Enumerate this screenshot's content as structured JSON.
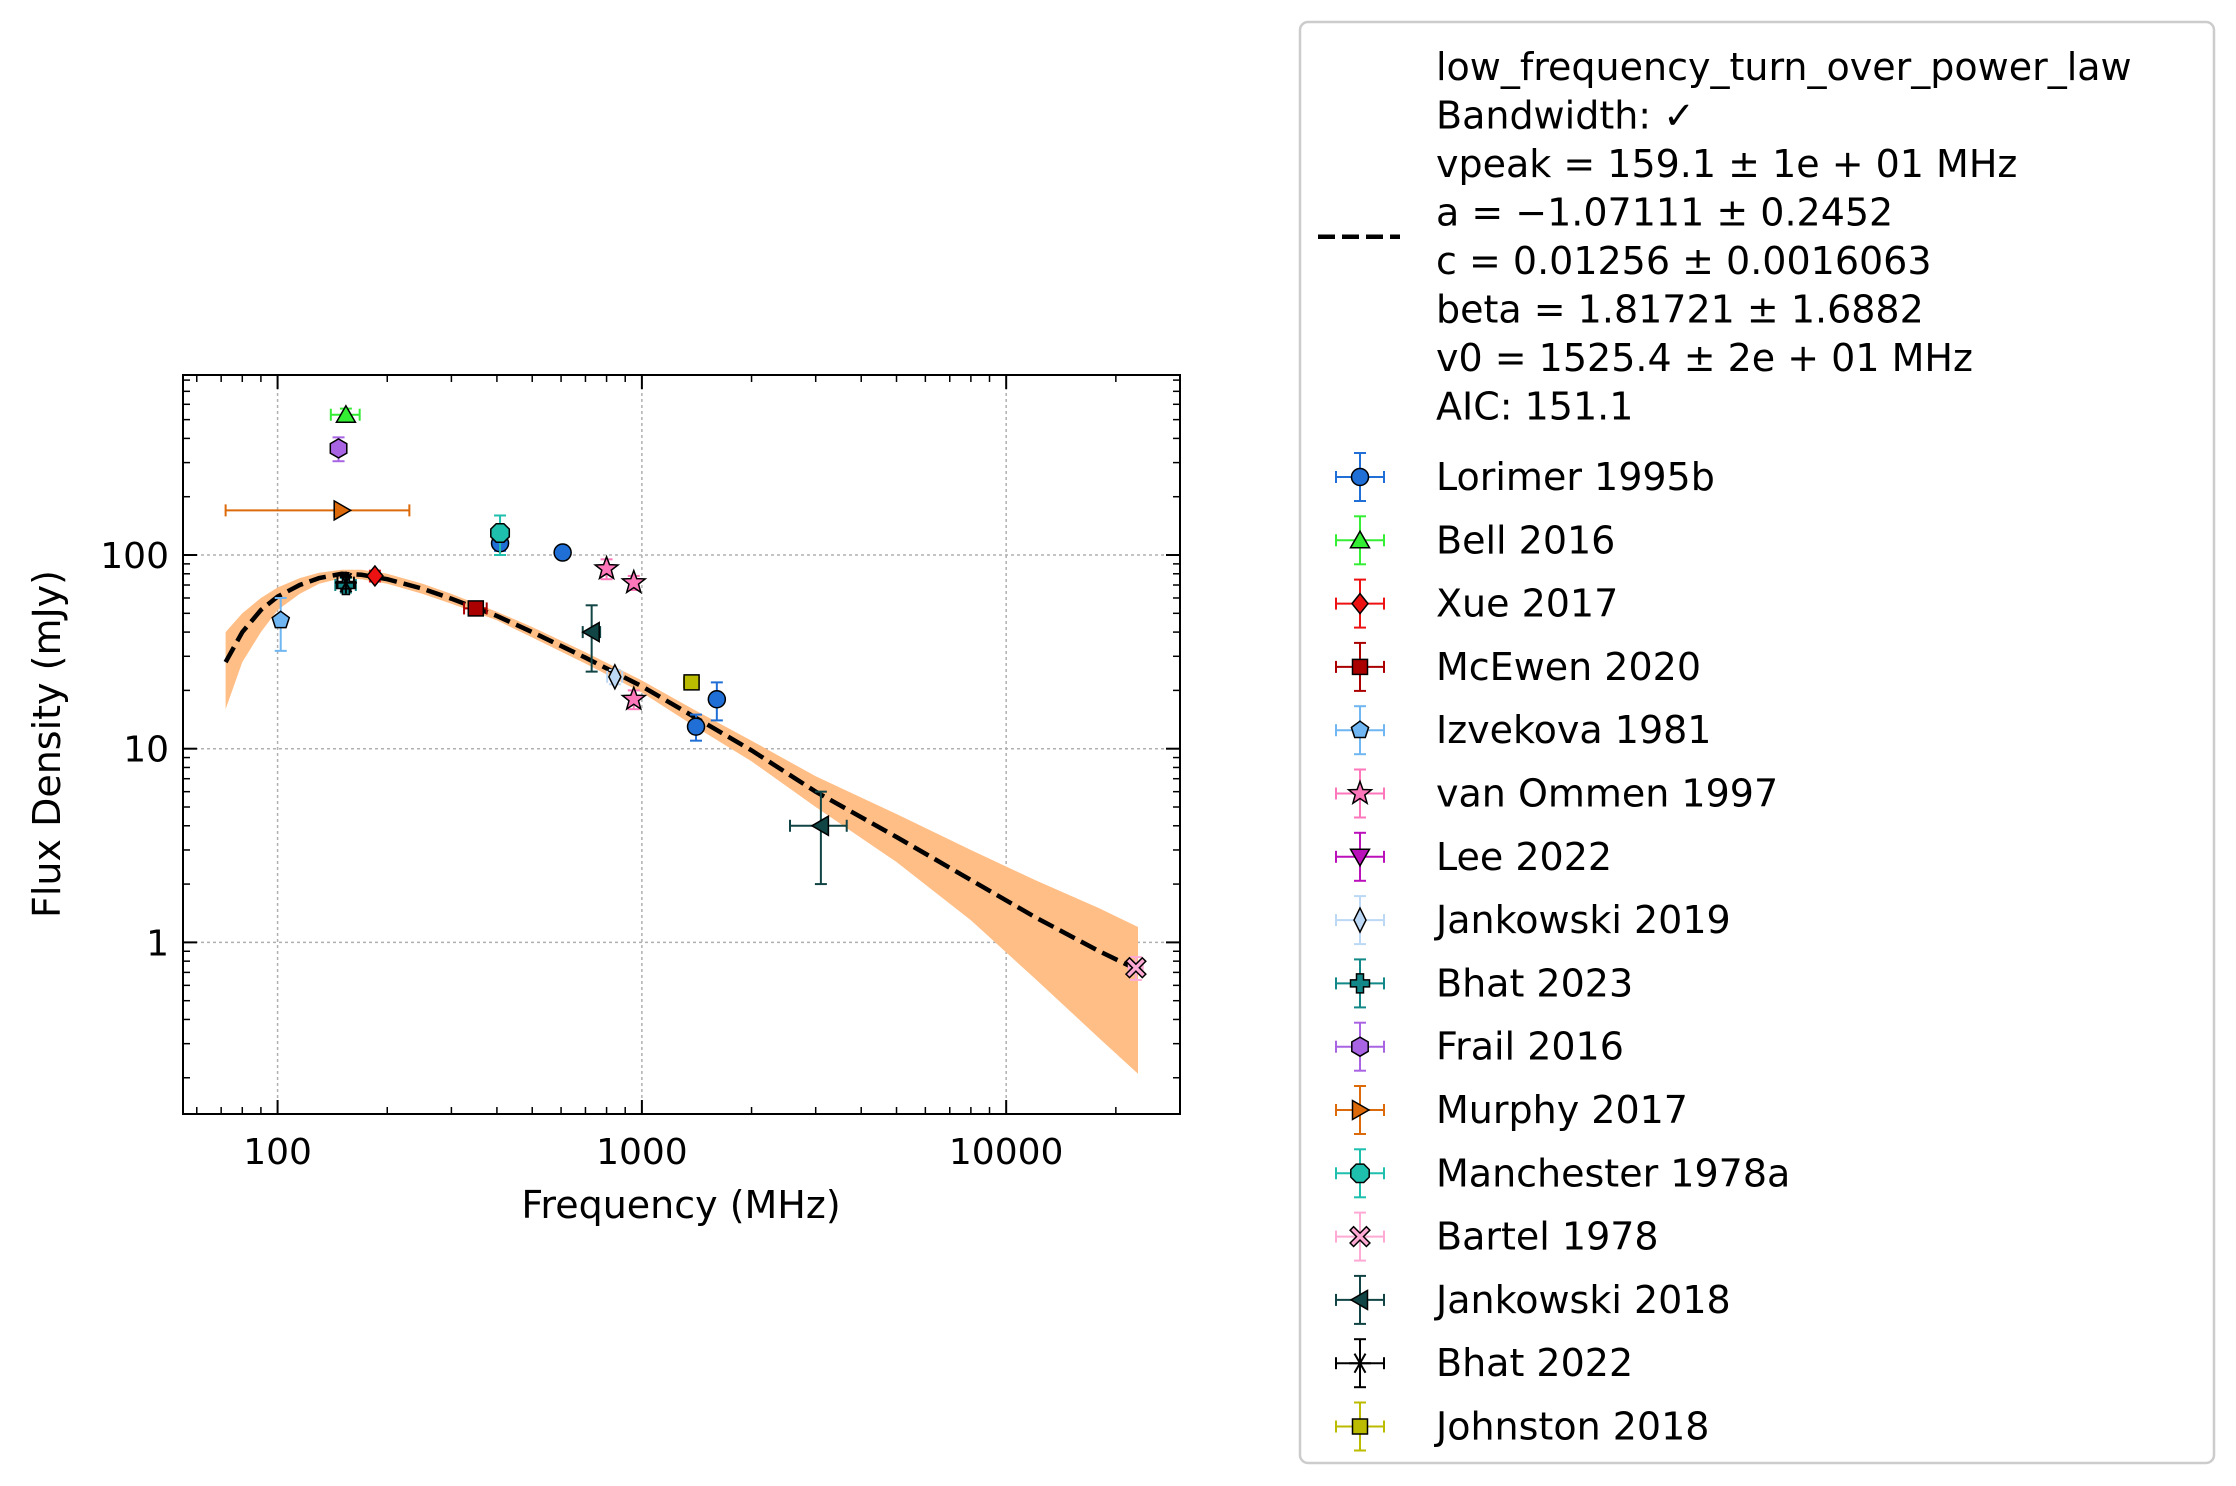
{
  "chart_data": {
    "type": "scatter",
    "xlabel": "Frequency (MHz)",
    "ylabel": "Flux Density (mJy)",
    "xscale": "log",
    "yscale": "log",
    "xlim": [
      55,
      30000
    ],
    "ylim": [
      0.13,
      850
    ],
    "grid": true,
    "legend_placement": "outside-right",
    "x_ticks": [
      {
        "value": 100,
        "label": "100"
      },
      {
        "value": 1000,
        "label": "1000"
      },
      {
        "value": 10000,
        "label": "10000"
      }
    ],
    "y_ticks": [
      {
        "value": 1,
        "label": "1"
      },
      {
        "value": 10,
        "label": "10"
      },
      {
        "value": 100,
        "label": "100"
      }
    ],
    "fit": {
      "name": "low_frequency_turn_over_power_law",
      "legend_lines": [
        "low_frequency_turn_over_power_law",
        "Bandwidth: ✓",
        "vpeak = 159.1 ± 1e + 01 MHz",
        "a = −1.07111 ± 0.2452",
        "c = 0.01256 ± 0.0016063",
        "beta = 1.81721 ± 1.6882",
        "v0 = 1525.4 ± 2e + 01 MHz",
        "AIC: 151.1"
      ],
      "color": "#000000",
      "band_color": "#ffbe86",
      "x": [
        72,
        80,
        90,
        100,
        115,
        130,
        150,
        170,
        200,
        250,
        300,
        400,
        500,
        700,
        1000,
        1400,
        2000,
        3000,
        5000,
        8000,
        12000,
        18000,
        23000
      ],
      "y": [
        28,
        40,
        52,
        61,
        70,
        76,
        80,
        79,
        75,
        67,
        59.5,
        48.5,
        40,
        29.5,
        21,
        14.5,
        9.8,
        6.0,
        3.5,
        2.1,
        1.35,
        0.9,
        0.72
      ],
      "band_upper": [
        40,
        50,
        60,
        68,
        76,
        81,
        84,
        84,
        80,
        71,
        63,
        51,
        42.5,
        31.5,
        22.5,
        15.8,
        11.0,
        7.2,
        4.6,
        3.0,
        2.1,
        1.5,
        1.2
      ],
      "band_lower": [
        16,
        28,
        40,
        52,
        63,
        71,
        76,
        75,
        71,
        63,
        56,
        46,
        37.5,
        27.5,
        19.5,
        13.0,
        8.6,
        5.0,
        2.6,
        1.3,
        0.65,
        0.32,
        0.21
      ]
    },
    "series": [
      {
        "name": "Lorimer 1995b",
        "color": "#1f6fd6",
        "marker": "circle",
        "points": [
          {
            "x": 408,
            "y": 115,
            "yerr": [
              10,
              10
            ]
          },
          {
            "x": 606,
            "y": 103,
            "yerr": [
              6,
              6
            ]
          },
          {
            "x": 1408,
            "y": 13,
            "yerr": [
              2,
              2
            ]
          },
          {
            "x": 1606,
            "y": 18,
            "yerr": [
              4,
              4
            ]
          }
        ]
      },
      {
        "name": "Bell 2016",
        "color": "#33ee33",
        "marker": "triangle-up",
        "points": [
          {
            "x": 154,
            "y": 530,
            "xerr": [
              14,
              14
            ],
            "yerr": [
              40,
              40
            ]
          }
        ]
      },
      {
        "name": "Xue 2017",
        "color": "#ee1111",
        "marker": "diamond",
        "points": [
          {
            "x": 185,
            "y": 78,
            "xerr": [
              5,
              5
            ],
            "yerr": [
              5,
              5
            ]
          }
        ]
      },
      {
        "name": "McEwen 2020",
        "color": "#aa0000",
        "marker": "square",
        "points": [
          {
            "x": 350,
            "y": 53,
            "xerr": [
              25,
              25
            ],
            "yerr": [
              4,
              4
            ]
          }
        ]
      },
      {
        "name": "Izvekova 1981",
        "color": "#6fb6f2",
        "marker": "pentagon",
        "points": [
          {
            "x": 102,
            "y": 46,
            "yerr": [
              14,
              14
            ]
          }
        ]
      },
      {
        "name": "van Ommen 1997",
        "color": "#ff77bb",
        "marker": "star",
        "points": [
          {
            "x": 800,
            "y": 85,
            "yerr": [
              10,
              10
            ]
          },
          {
            "x": 950,
            "y": 72,
            "yerr": [
              6,
              6
            ]
          },
          {
            "x": 950,
            "y": 18,
            "yerr": [
              2,
              2
            ]
          }
        ]
      },
      {
        "name": "Lee 2022",
        "color": "#bb11bb",
        "marker": "triangle-down",
        "points": []
      },
      {
        "name": "Jankowski 2019",
        "color": "#bcd8f4",
        "marker": "thin-diamond",
        "points": [
          {
            "x": 843,
            "y": 23.5,
            "xerr": [
              40,
              40
            ],
            "yerr": [
              2,
              2
            ]
          }
        ]
      },
      {
        "name": "Bhat 2023",
        "color": "#138888",
        "marker": "plus",
        "points": [
          {
            "x": 154,
            "y": 70,
            "xerr": [
              10,
              10
            ],
            "yerr": [
              6,
              6
            ]
          }
        ]
      },
      {
        "name": "Frail 2016",
        "color": "#a964e3",
        "marker": "hexagon",
        "points": [
          {
            "x": 147,
            "y": 355,
            "yerr": [
              50,
              50
            ]
          }
        ]
      },
      {
        "name": "Murphy 2017",
        "color": "#dd6a0a",
        "marker": "triangle-right",
        "points": [
          {
            "x": 150,
            "y": 170,
            "xerr": [
              78,
              80
            ]
          }
        ]
      },
      {
        "name": "Manchester 1978a",
        "color": "#1fbfae",
        "marker": "octagon",
        "points": [
          {
            "x": 408,
            "y": 130,
            "yerr": [
              30,
              30
            ]
          }
        ]
      },
      {
        "name": "Bartel 1978",
        "color": "#ffaad4",
        "marker": "x-filled",
        "points": [
          {
            "x": 22700,
            "y": 0.74,
            "xerr": [
              1000,
              1000
            ],
            "yerr": [
              0.1,
              0.1
            ]
          }
        ]
      },
      {
        "name": "Jankowski 2018",
        "color": "#114444",
        "marker": "triangle-left",
        "points": [
          {
            "x": 728,
            "y": 40,
            "xerr": [
              40,
              40
            ],
            "yerr": [
              15,
              15
            ]
          },
          {
            "x": 3100,
            "y": 4.0,
            "xerr": [
              550,
              550
            ],
            "yerr": [
              2,
              2
            ]
          }
        ]
      },
      {
        "name": "Bhat 2022",
        "color": "#000000",
        "marker": "asterisk",
        "points": [
          {
            "x": 154,
            "y": 72,
            "xerr": [
              8,
              8
            ],
            "yerr": [
              5,
              5
            ]
          }
        ]
      },
      {
        "name": "Johnston 2018",
        "color": "#bbbb00",
        "marker": "square",
        "points": [
          {
            "x": 1369,
            "y": 22,
            "xerr": [
              64,
              64
            ],
            "yerr": [
              1.5,
              1.5
            ]
          }
        ]
      }
    ]
  }
}
